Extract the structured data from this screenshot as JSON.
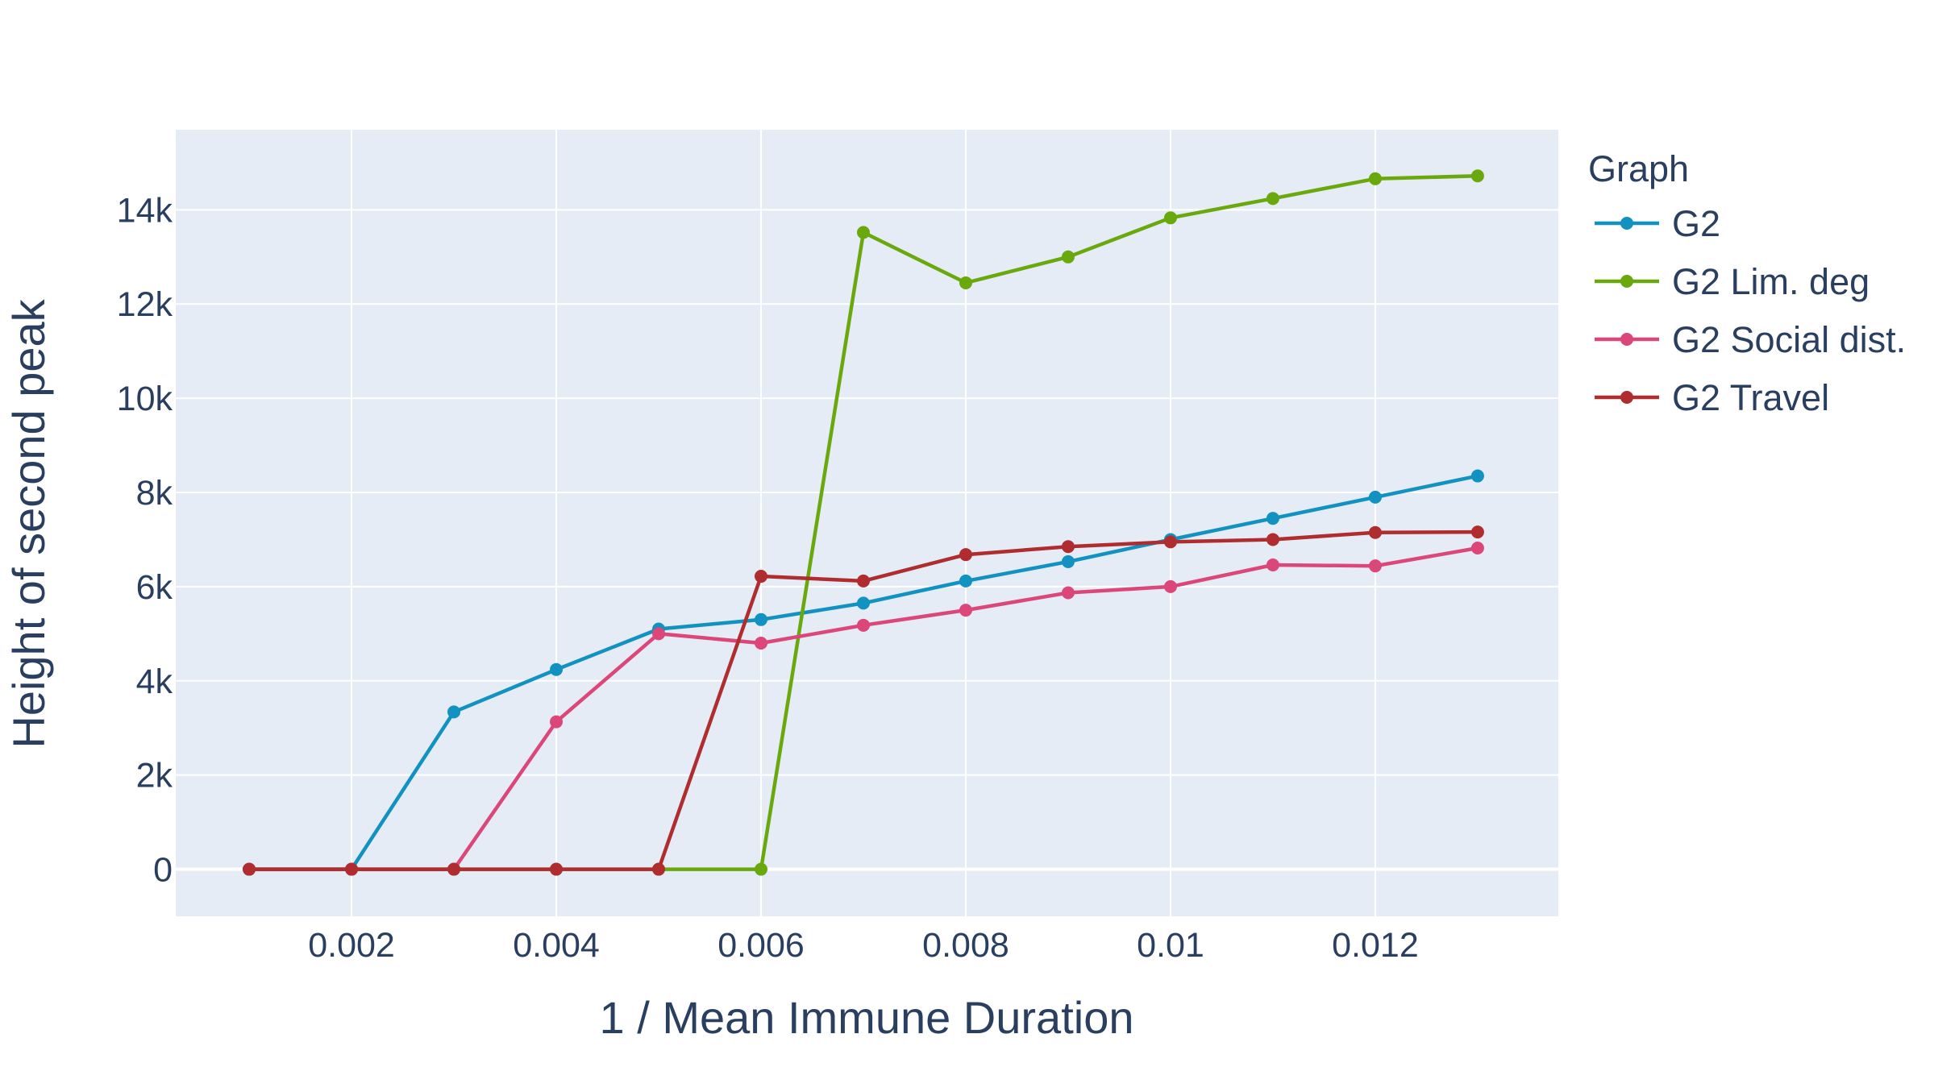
{
  "chart_data": {
    "type": "line",
    "title": "",
    "xlabel": "1 / Mean Immune Duration",
    "ylabel": "Height of second peak",
    "xlim": [
      0.000283,
      0.013788
    ],
    "ylim": [
      -1000,
      15700
    ],
    "x_ticks": [
      0.002,
      0.004,
      0.006,
      0.008,
      0.01,
      0.012
    ],
    "x_tick_labels": [
      "0.002",
      "0.004",
      "0.006",
      "0.008",
      "0.01",
      "0.012"
    ],
    "y_ticks": [
      0,
      2000,
      4000,
      6000,
      8000,
      10000,
      12000,
      14000
    ],
    "y_tick_labels": [
      "0",
      "2k",
      "4k",
      "6k",
      "8k",
      "10k",
      "12k",
      "14k"
    ],
    "grid": true,
    "legend_title": "Graph",
    "legend_position": "right",
    "x": [
      0.001,
      0.002,
      0.003,
      0.004,
      0.005,
      0.006,
      0.007,
      0.008,
      0.009,
      0.01,
      0.011,
      0.012,
      0.013
    ],
    "series": [
      {
        "name": "G2",
        "color": "#1192c0",
        "values": [
          0,
          0,
          3340,
          4240,
          5100,
          5300,
          5650,
          6120,
          6530,
          7000,
          7450,
          7900,
          8350
        ]
      },
      {
        "name": "G2 Lim. deg",
        "color": "#6aa90e",
        "values": [
          0,
          0,
          0,
          0,
          0,
          0,
          13520,
          12450,
          13000,
          13830,
          14240,
          14660,
          14720
        ]
      },
      {
        "name": "G2 Social dist.",
        "color": "#dc4779",
        "values": [
          0,
          0,
          0,
          3130,
          5000,
          4800,
          5180,
          5500,
          5870,
          6000,
          6460,
          6440,
          6820
        ]
      },
      {
        "name": "G2 Travel",
        "color": "#b02d2f",
        "values": [
          0,
          0,
          0,
          0,
          0,
          6220,
          6120,
          6680,
          6850,
          6950,
          7000,
          7150,
          7160
        ]
      }
    ]
  }
}
